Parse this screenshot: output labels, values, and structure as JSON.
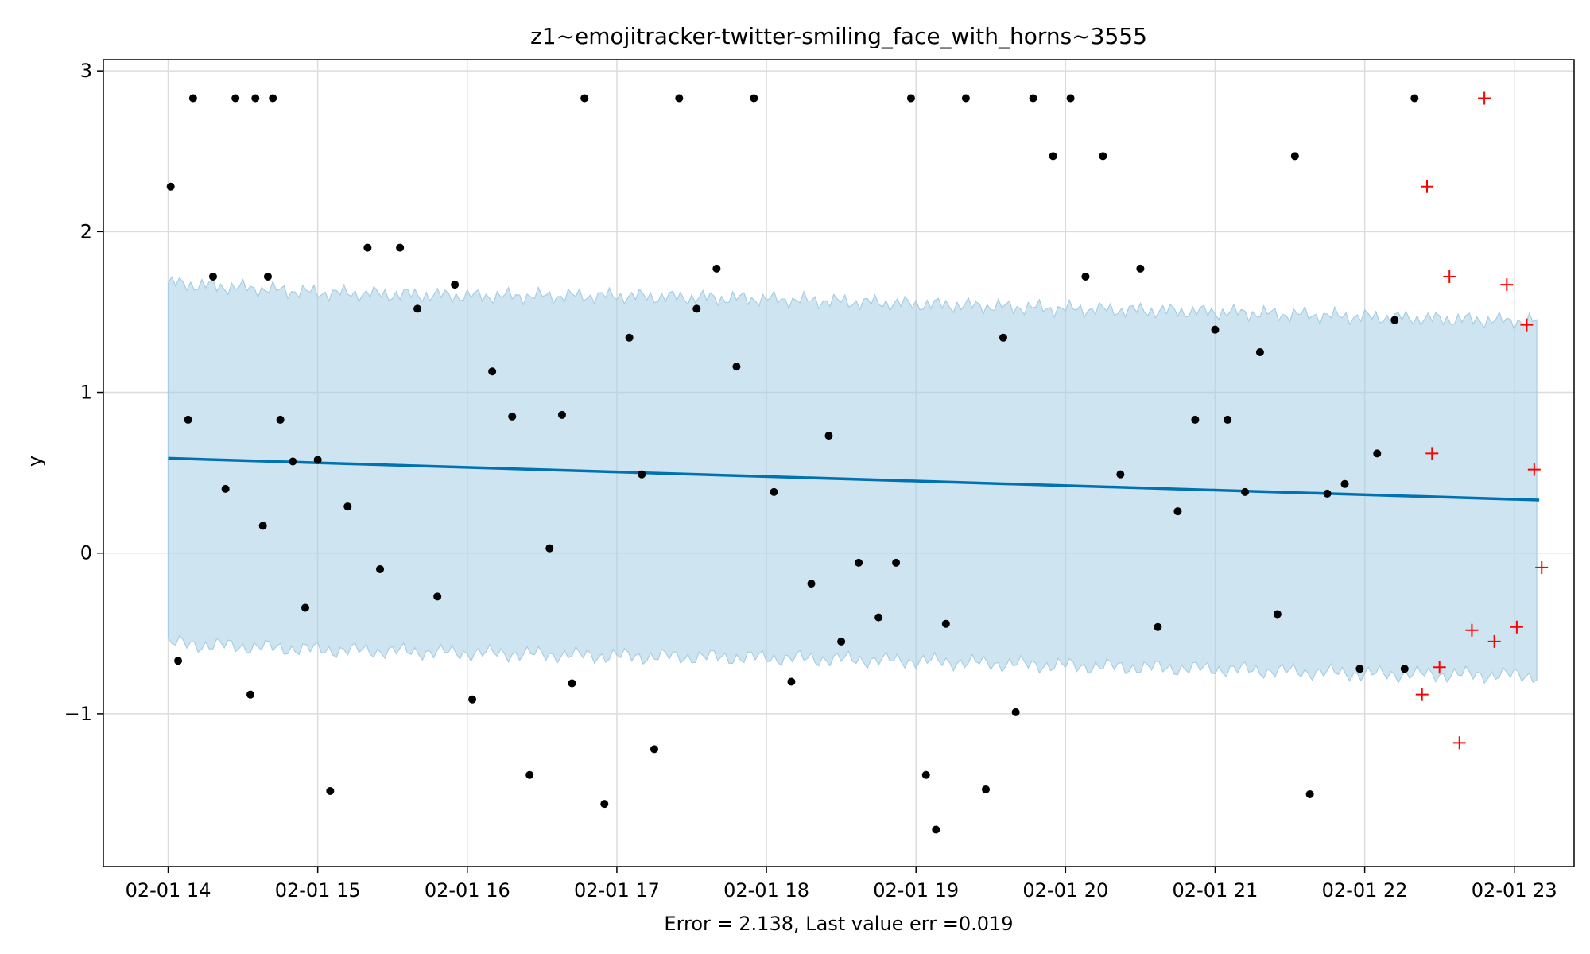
{
  "chart_data": {
    "type": "scatter",
    "title": "z1~emojitracker-twitter-smiling_face_with_horns~3555",
    "xlabel": "Error = 2.138, Last value err =0.019",
    "ylabel": "y",
    "x_range": [
      "02-01 13:34",
      "02-01 23:24"
    ],
    "ylim": [
      -1.95,
      3.07
    ],
    "x_tick_labels": [
      "02-01 14",
      "02-01 15",
      "02-01 16",
      "02-01 17",
      "02-01 18",
      "02-01 19",
      "02-01 20",
      "02-01 21",
      "02-01 22",
      "02-01 23"
    ],
    "y_tick_labels": [
      "3",
      "2",
      "1",
      "0",
      "−1"
    ],
    "grid": true,
    "colors": {
      "trend": "#0072b2",
      "band": "#a6cee3",
      "observed": "#000000",
      "future": "#ff0000"
    },
    "trend": {
      "x": [
        "02-01 14:00",
        "02-01 23:10"
      ],
      "y": [
        0.59,
        0.33
      ]
    },
    "interval": {
      "x": [
        "02-01 14:00",
        "02-01 15:00",
        "02-01 16:00",
        "02-01 17:00",
        "02-01 18:00",
        "02-01 19:00",
        "02-01 20:00",
        "02-01 21:00",
        "02-01 22:00",
        "02-01 23:10"
      ],
      "upper": [
        1.68,
        1.62,
        1.6,
        1.6,
        1.58,
        1.55,
        1.52,
        1.5,
        1.47,
        1.44
      ],
      "lower": [
        -0.56,
        -0.6,
        -0.62,
        -0.64,
        -0.65,
        -0.67,
        -0.7,
        -0.72,
        -0.75,
        -0.76
      ]
    },
    "series": [
      {
        "marker": "dot",
        "x": [
          "02-01 14:01",
          "02-01 14:04",
          "02-01 14:08",
          "02-01 14:10",
          "02-01 14:18",
          "02-01 14:23",
          "02-01 14:27",
          "02-01 14:33",
          "02-01 14:35",
          "02-01 14:38",
          "02-01 14:40",
          "02-01 14:42",
          "02-01 14:45",
          "02-01 14:50",
          "02-01 14:55",
          "02-01 15:00",
          "02-01 15:05",
          "02-01 15:12",
          "02-01 15:20",
          "02-01 15:25",
          "02-01 15:33",
          "02-01 15:40",
          "02-01 15:48",
          "02-01 15:55",
          "02-01 16:02",
          "02-01 16:10",
          "02-01 16:18",
          "02-01 16:25",
          "02-01 16:33",
          "02-01 16:38",
          "02-01 16:42",
          "02-01 16:47",
          "02-01 16:55",
          "02-01 17:05",
          "02-01 17:10",
          "02-01 17:15",
          "02-01 17:25",
          "02-01 17:32",
          "02-01 17:40",
          "02-01 17:48",
          "02-01 17:55",
          "02-01 18:03",
          "02-01 18:10",
          "02-01 18:18",
          "02-01 18:25",
          "02-01 18:30",
          "02-01 18:37",
          "02-01 18:45",
          "02-01 18:52",
          "02-01 18:58",
          "02-01 19:04",
          "02-01 19:08",
          "02-01 19:12",
          "02-01 19:20",
          "02-01 19:28",
          "02-01 19:35",
          "02-01 19:40",
          "02-01 19:47",
          "02-01 19:55",
          "02-01 20:02",
          "02-01 20:08",
          "02-01 20:15",
          "02-01 20:22",
          "02-01 20:30",
          "02-01 20:37",
          "02-01 20:45",
          "02-01 20:52",
          "02-01 21:00",
          "02-01 21:05",
          "02-01 21:12",
          "02-01 21:18",
          "02-01 21:25",
          "02-01 21:32",
          "02-01 21:38",
          "02-01 21:45",
          "02-01 21:52",
          "02-01 21:58",
          "02-01 22:05",
          "02-01 22:12",
          "02-01 22:16",
          "02-01 22:20"
        ],
        "y": [
          2.28,
          -0.67,
          0.83,
          2.83,
          1.72,
          0.4,
          2.83,
          -0.88,
          2.83,
          0.17,
          1.72,
          2.83,
          0.83,
          0.57,
          -0.34,
          0.58,
          -1.48,
          0.29,
          1.9,
          -0.1,
          1.9,
          1.52,
          -0.27,
          1.67,
          -0.91,
          1.13,
          0.85,
          -1.38,
          0.03,
          0.86,
          -0.81,
          2.83,
          -1.56,
          1.34,
          0.49,
          -1.22,
          2.83,
          1.52,
          1.77,
          1.16,
          2.83,
          0.38,
          -0.8,
          -0.19,
          0.73,
          -0.55,
          -0.06,
          -0.4,
          -0.06,
          2.83,
          -1.38,
          -1.72,
          -0.44,
          2.83,
          -1.47,
          1.34,
          -0.99,
          2.83,
          2.47,
          2.83,
          1.72,
          2.47,
          0.49,
          1.77,
          -0.46,
          0.26,
          0.83,
          1.39,
          0.83,
          0.38,
          1.25,
          -0.38,
          2.47,
          -1.5,
          0.37,
          0.43,
          -0.72,
          0.62,
          1.45,
          -0.72,
          2.83
        ]
      },
      {
        "marker": "plus",
        "x": [
          "02-01 22:23",
          "02-01 22:25",
          "02-01 22:27",
          "02-01 22:30",
          "02-01 22:34",
          "02-01 22:38",
          "02-01 22:43",
          "02-01 22:48",
          "02-01 22:52",
          "02-01 22:57",
          "02-01 23:01",
          "02-01 23:05",
          "02-01 23:08",
          "02-01 23:11"
        ],
        "y": [
          -0.88,
          2.28,
          0.62,
          -0.71,
          1.72,
          -1.18,
          -0.48,
          2.83,
          -0.55,
          1.67,
          -0.46,
          1.42,
          0.52,
          -0.09
        ]
      }
    ]
  }
}
